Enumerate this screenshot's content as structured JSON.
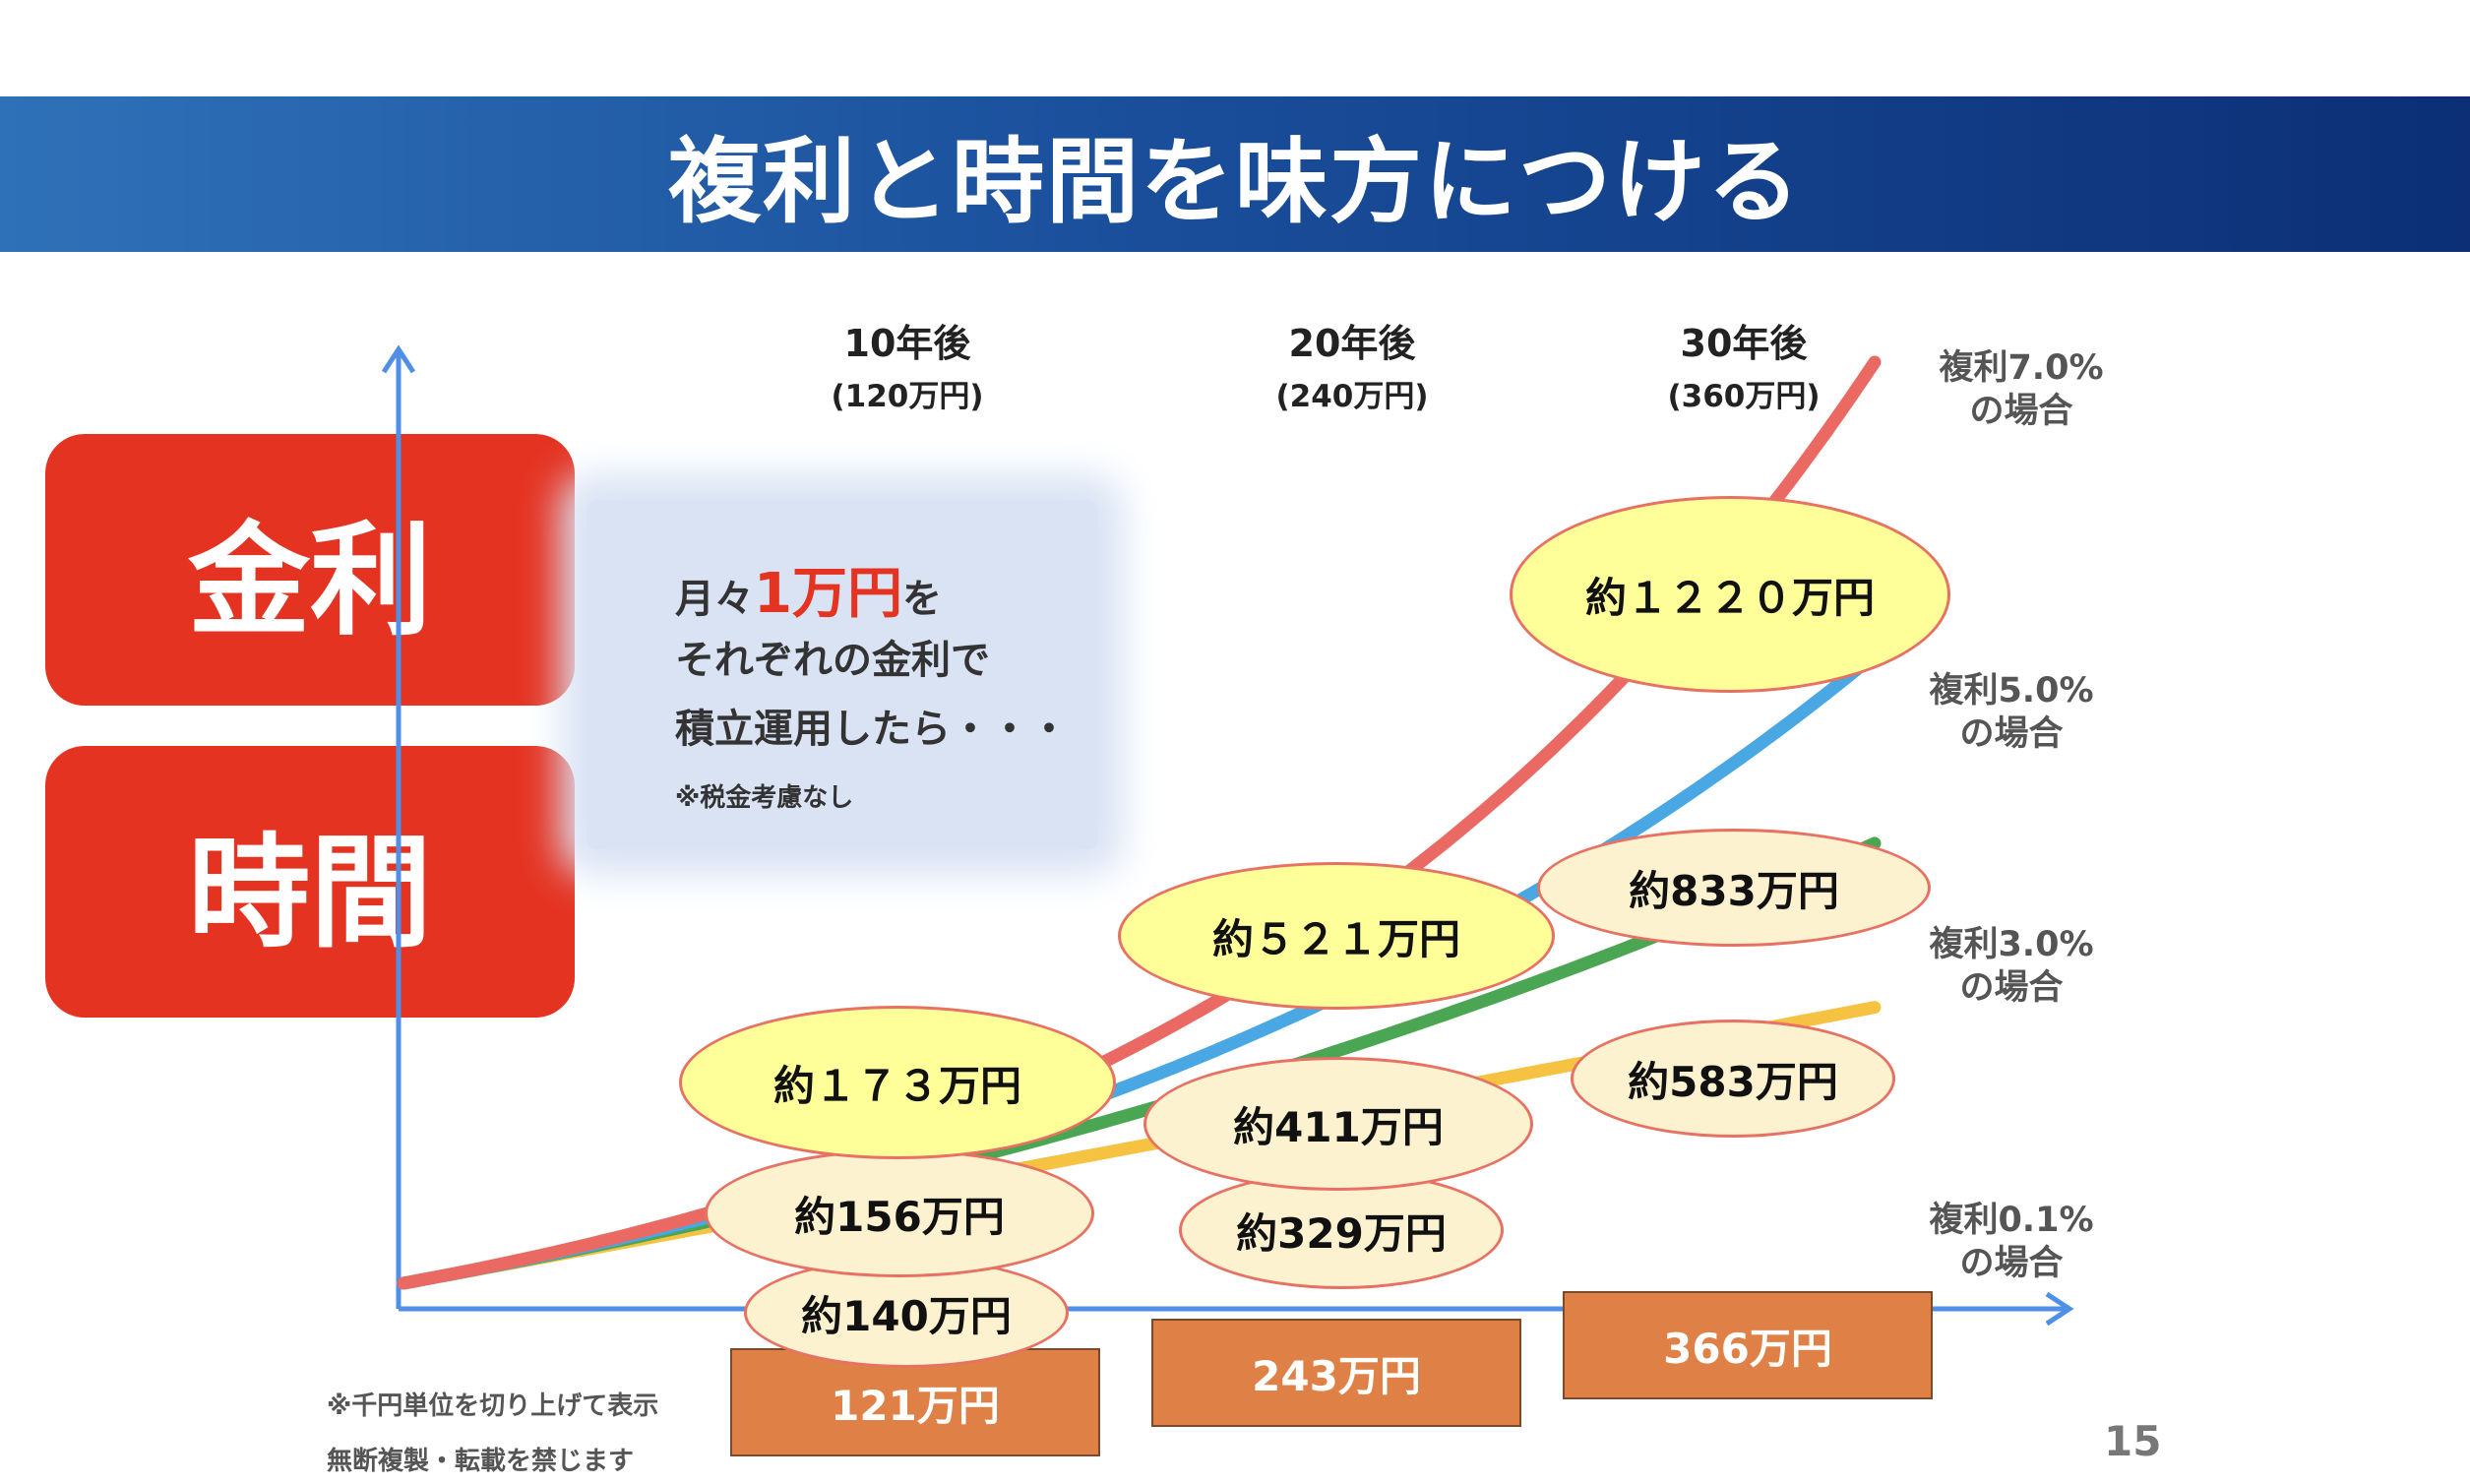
{
  "title": "複利と時間を味方につける",
  "badges": [
    "金利",
    "時間"
  ],
  "info": {
    "line1_prefix": "月々",
    "line1_highlight": "1万円",
    "line1_suffix": "を",
    "line2": "それぞれの金利で",
    "line3": "積立運用したら・・・",
    "note": "※税金考慮なし"
  },
  "footnotes": [
    "※千円単位を切り上げて表示",
    "無断複製・転載を禁じます"
  ],
  "page_number": "15",
  "colors": {
    "title_bar": "#1a4f9c",
    "badge": "#e53322",
    "axis": "#4f8fe6",
    "rate_7": "#ea6a63",
    "rate_5": "#49a7e3",
    "rate_3": "#4aa652",
    "rate_01": "#f5c242",
    "principal_box": "#df8147",
    "bubble_yellow": "#ffff99",
    "bubble_cream": "#fdf2cf"
  },
  "chart_data": {
    "type": "line",
    "x_unit": "年",
    "xlim": [
      0,
      30
    ],
    "y_unit": "万円",
    "periods": [
      {
        "label": "10年後",
        "principal_label": "(120万円)",
        "year": 10
      },
      {
        "label": "20年後",
        "principal_label": "(240万円)",
        "year": 20
      },
      {
        "label": "30年後",
        "principal_label": "(360万円)",
        "year": 30
      }
    ],
    "series": [
      {
        "name": "複利7.0%",
        "sub": "の場合",
        "rate": 7.0,
        "color": "#ea6a63",
        "values": [
          {
            "year": 10,
            "value": 173,
            "label": "約１７３万円"
          },
          {
            "year": 20,
            "value": 521,
            "label": "約５２１万円"
          },
          {
            "year": 30,
            "value": 1220,
            "label": "約１２２０万円"
          }
        ]
      },
      {
        "name": "複利5.0%",
        "sub": "の場合",
        "rate": 5.0,
        "color": "#49a7e3",
        "values": [
          {
            "year": 10,
            "value": 156,
            "label": "約156万円"
          },
          {
            "year": 20,
            "value": 411,
            "label": "約411万円"
          },
          {
            "year": 30,
            "value": 833,
            "label": "約833万円"
          }
        ]
      },
      {
        "name": "複利3.0%",
        "sub": "の場合",
        "rate": 3.0,
        "color": "#4aa652",
        "values": [
          {
            "year": 10,
            "value": 140,
            "label": "約140万円"
          },
          {
            "year": 20,
            "value": 329,
            "label": "約329万円"
          },
          {
            "year": 30,
            "value": 583,
            "label": "約583万円"
          }
        ]
      },
      {
        "name": "複利0.1%",
        "sub": "の場合",
        "rate": 0.1,
        "color": "#f5c242",
        "values": [
          {
            "year": 10,
            "value": 121,
            "label": "121万円"
          },
          {
            "year": 20,
            "value": 243,
            "label": "243万円"
          },
          {
            "year": 30,
            "value": 366,
            "label": "366万円"
          }
        ]
      }
    ]
  }
}
